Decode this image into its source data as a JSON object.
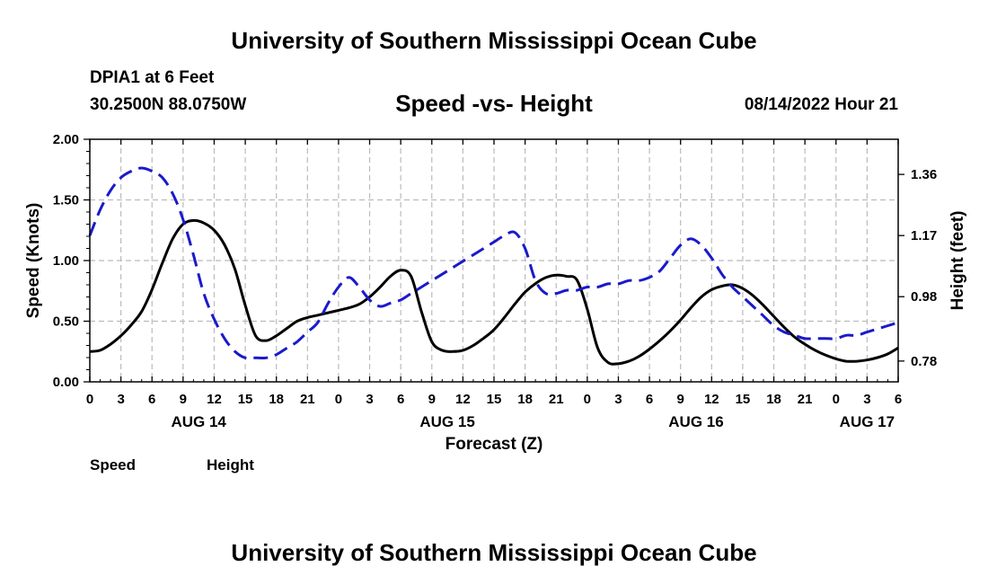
{
  "header": {
    "title": "University of Southern Mississippi Ocean Cube",
    "station": "DPIA1 at 6 Feet",
    "coords": "30.2500N  88.0750W",
    "subtitle": "Speed -vs- Height",
    "datetime": "08/14/2022 Hour 21"
  },
  "footer": {
    "title": "University of Southern Mississippi Ocean Cube"
  },
  "legend": {
    "speed_label": "Speed",
    "height_label": "Height"
  },
  "colors": {
    "speed": "#000000",
    "height": "#1a1acc",
    "grid": "#bbbbbb"
  },
  "chart_data": {
    "type": "line",
    "title": "Speed -vs- Height",
    "xlabel": "Forecast (Z)",
    "ylabel": "Speed (Knots)",
    "y2label": "Height (feet)",
    "xlim": [
      0,
      78
    ],
    "ylim": [
      0,
      2.0
    ],
    "y2lim": [
      0.7154,
      1.4692
    ],
    "x_ticks": [
      0,
      3,
      6,
      9,
      12,
      15,
      18,
      21,
      24,
      27,
      30,
      33,
      36,
      39,
      42,
      45,
      48,
      51,
      54,
      57,
      60,
      63,
      66,
      69,
      72,
      75,
      78
    ],
    "x_tick_labels": [
      "0",
      "3",
      "6",
      "9",
      "12",
      "15",
      "18",
      "21",
      "0",
      "3",
      "6",
      "9",
      "12",
      "15",
      "18",
      "21",
      "0",
      "3",
      "6",
      "9",
      "12",
      "15",
      "18",
      "21",
      "0",
      "3",
      "6"
    ],
    "date_labels": [
      {
        "x": 10.5,
        "label": "AUG 14"
      },
      {
        "x": 34.5,
        "label": "AUG 15"
      },
      {
        "x": 58.5,
        "label": "AUG 16"
      },
      {
        "x": 75.0,
        "label": "AUG 17"
      }
    ],
    "y_ticks": [
      0.0,
      0.5,
      1.0,
      1.5,
      2.0
    ],
    "y_tick_labels": [
      "0.00",
      "0.50",
      "1.00",
      "1.50",
      "2.00"
    ],
    "y2_ticks": [
      0.78,
      0.98,
      1.17,
      1.36
    ],
    "y2_tick_labels": [
      "0.78",
      "0.98",
      "1.17",
      "1.36"
    ],
    "grid": true,
    "series": [
      {
        "name": "Speed",
        "axis": "left",
        "style": "solid",
        "x": [
          0,
          1,
          2,
          3,
          4,
          5,
          6,
          7,
          8,
          9,
          10,
          11,
          12,
          13,
          14,
          15,
          16,
          17,
          18,
          19,
          20,
          21,
          22,
          23,
          24,
          25,
          26,
          27,
          28,
          29,
          30,
          31,
          32,
          33,
          34,
          35,
          36,
          37,
          38,
          39,
          40,
          41,
          42,
          43,
          44,
          45,
          46,
          47,
          48,
          49,
          50,
          51,
          52,
          53,
          54,
          55,
          56,
          57,
          58,
          59,
          60,
          61,
          62,
          63,
          64,
          65,
          66,
          67,
          68,
          69,
          70,
          71,
          72,
          73,
          74,
          75,
          76,
          77,
          78
        ],
        "values": [
          0.25,
          0.26,
          0.31,
          0.38,
          0.47,
          0.58,
          0.76,
          0.98,
          1.18,
          1.3,
          1.33,
          1.31,
          1.25,
          1.13,
          0.93,
          0.63,
          0.38,
          0.34,
          0.38,
          0.44,
          0.5,
          0.53,
          0.55,
          0.57,
          0.59,
          0.61,
          0.64,
          0.7,
          0.78,
          0.87,
          0.92,
          0.87,
          0.58,
          0.33,
          0.26,
          0.25,
          0.26,
          0.3,
          0.36,
          0.43,
          0.53,
          0.64,
          0.74,
          0.81,
          0.86,
          0.88,
          0.87,
          0.84,
          0.6,
          0.28,
          0.16,
          0.15,
          0.17,
          0.21,
          0.27,
          0.34,
          0.42,
          0.51,
          0.61,
          0.7,
          0.76,
          0.79,
          0.8,
          0.77,
          0.71,
          0.63,
          0.54,
          0.45,
          0.37,
          0.31,
          0.26,
          0.22,
          0.19,
          0.17,
          0.17,
          0.18,
          0.2,
          0.23,
          0.28
        ]
      },
      {
        "name": "Height",
        "axis": "right",
        "style": "dashed",
        "x": [
          0,
          1,
          2,
          3,
          4,
          5,
          6,
          7,
          8,
          9,
          10,
          11,
          12,
          13,
          14,
          15,
          16,
          17,
          18,
          19,
          20,
          21,
          22,
          23,
          24,
          25,
          26,
          27,
          28,
          29,
          30,
          31,
          32,
          33,
          34,
          35,
          36,
          37,
          38,
          39,
          40,
          41,
          42,
          43,
          44,
          45,
          46,
          47,
          48,
          49,
          50,
          51,
          52,
          53,
          54,
          55,
          56,
          57,
          58,
          59,
          60,
          61,
          62,
          63,
          64,
          65,
          66,
          67,
          68,
          69,
          70,
          71,
          72,
          73,
          74,
          75,
          76,
          77,
          78
        ],
        "values": [
          1.17,
          1.25,
          1.31,
          1.35,
          1.37,
          1.38,
          1.37,
          1.35,
          1.3,
          1.22,
          1.11,
          0.99,
          0.91,
          0.85,
          0.81,
          0.79,
          0.79,
          0.79,
          0.8,
          0.82,
          0.84,
          0.87,
          0.9,
          0.96,
          1.01,
          1.04,
          1.01,
          0.97,
          0.95,
          0.96,
          0.97,
          0.99,
          1.01,
          1.03,
          1.05,
          1.07,
          1.09,
          1.11,
          1.13,
          1.15,
          1.17,
          1.18,
          1.13,
          1.03,
          0.99,
          0.99,
          1.0,
          1.0,
          1.01,
          1.01,
          1.02,
          1.02,
          1.03,
          1.03,
          1.04,
          1.06,
          1.1,
          1.14,
          1.16,
          1.14,
          1.1,
          1.05,
          1.01,
          0.98,
          0.95,
          0.92,
          0.89,
          0.87,
          0.86,
          0.85,
          0.85,
          0.85,
          0.85,
          0.86,
          0.86,
          0.87,
          0.88,
          0.89,
          0.9
        ]
      }
    ]
  }
}
